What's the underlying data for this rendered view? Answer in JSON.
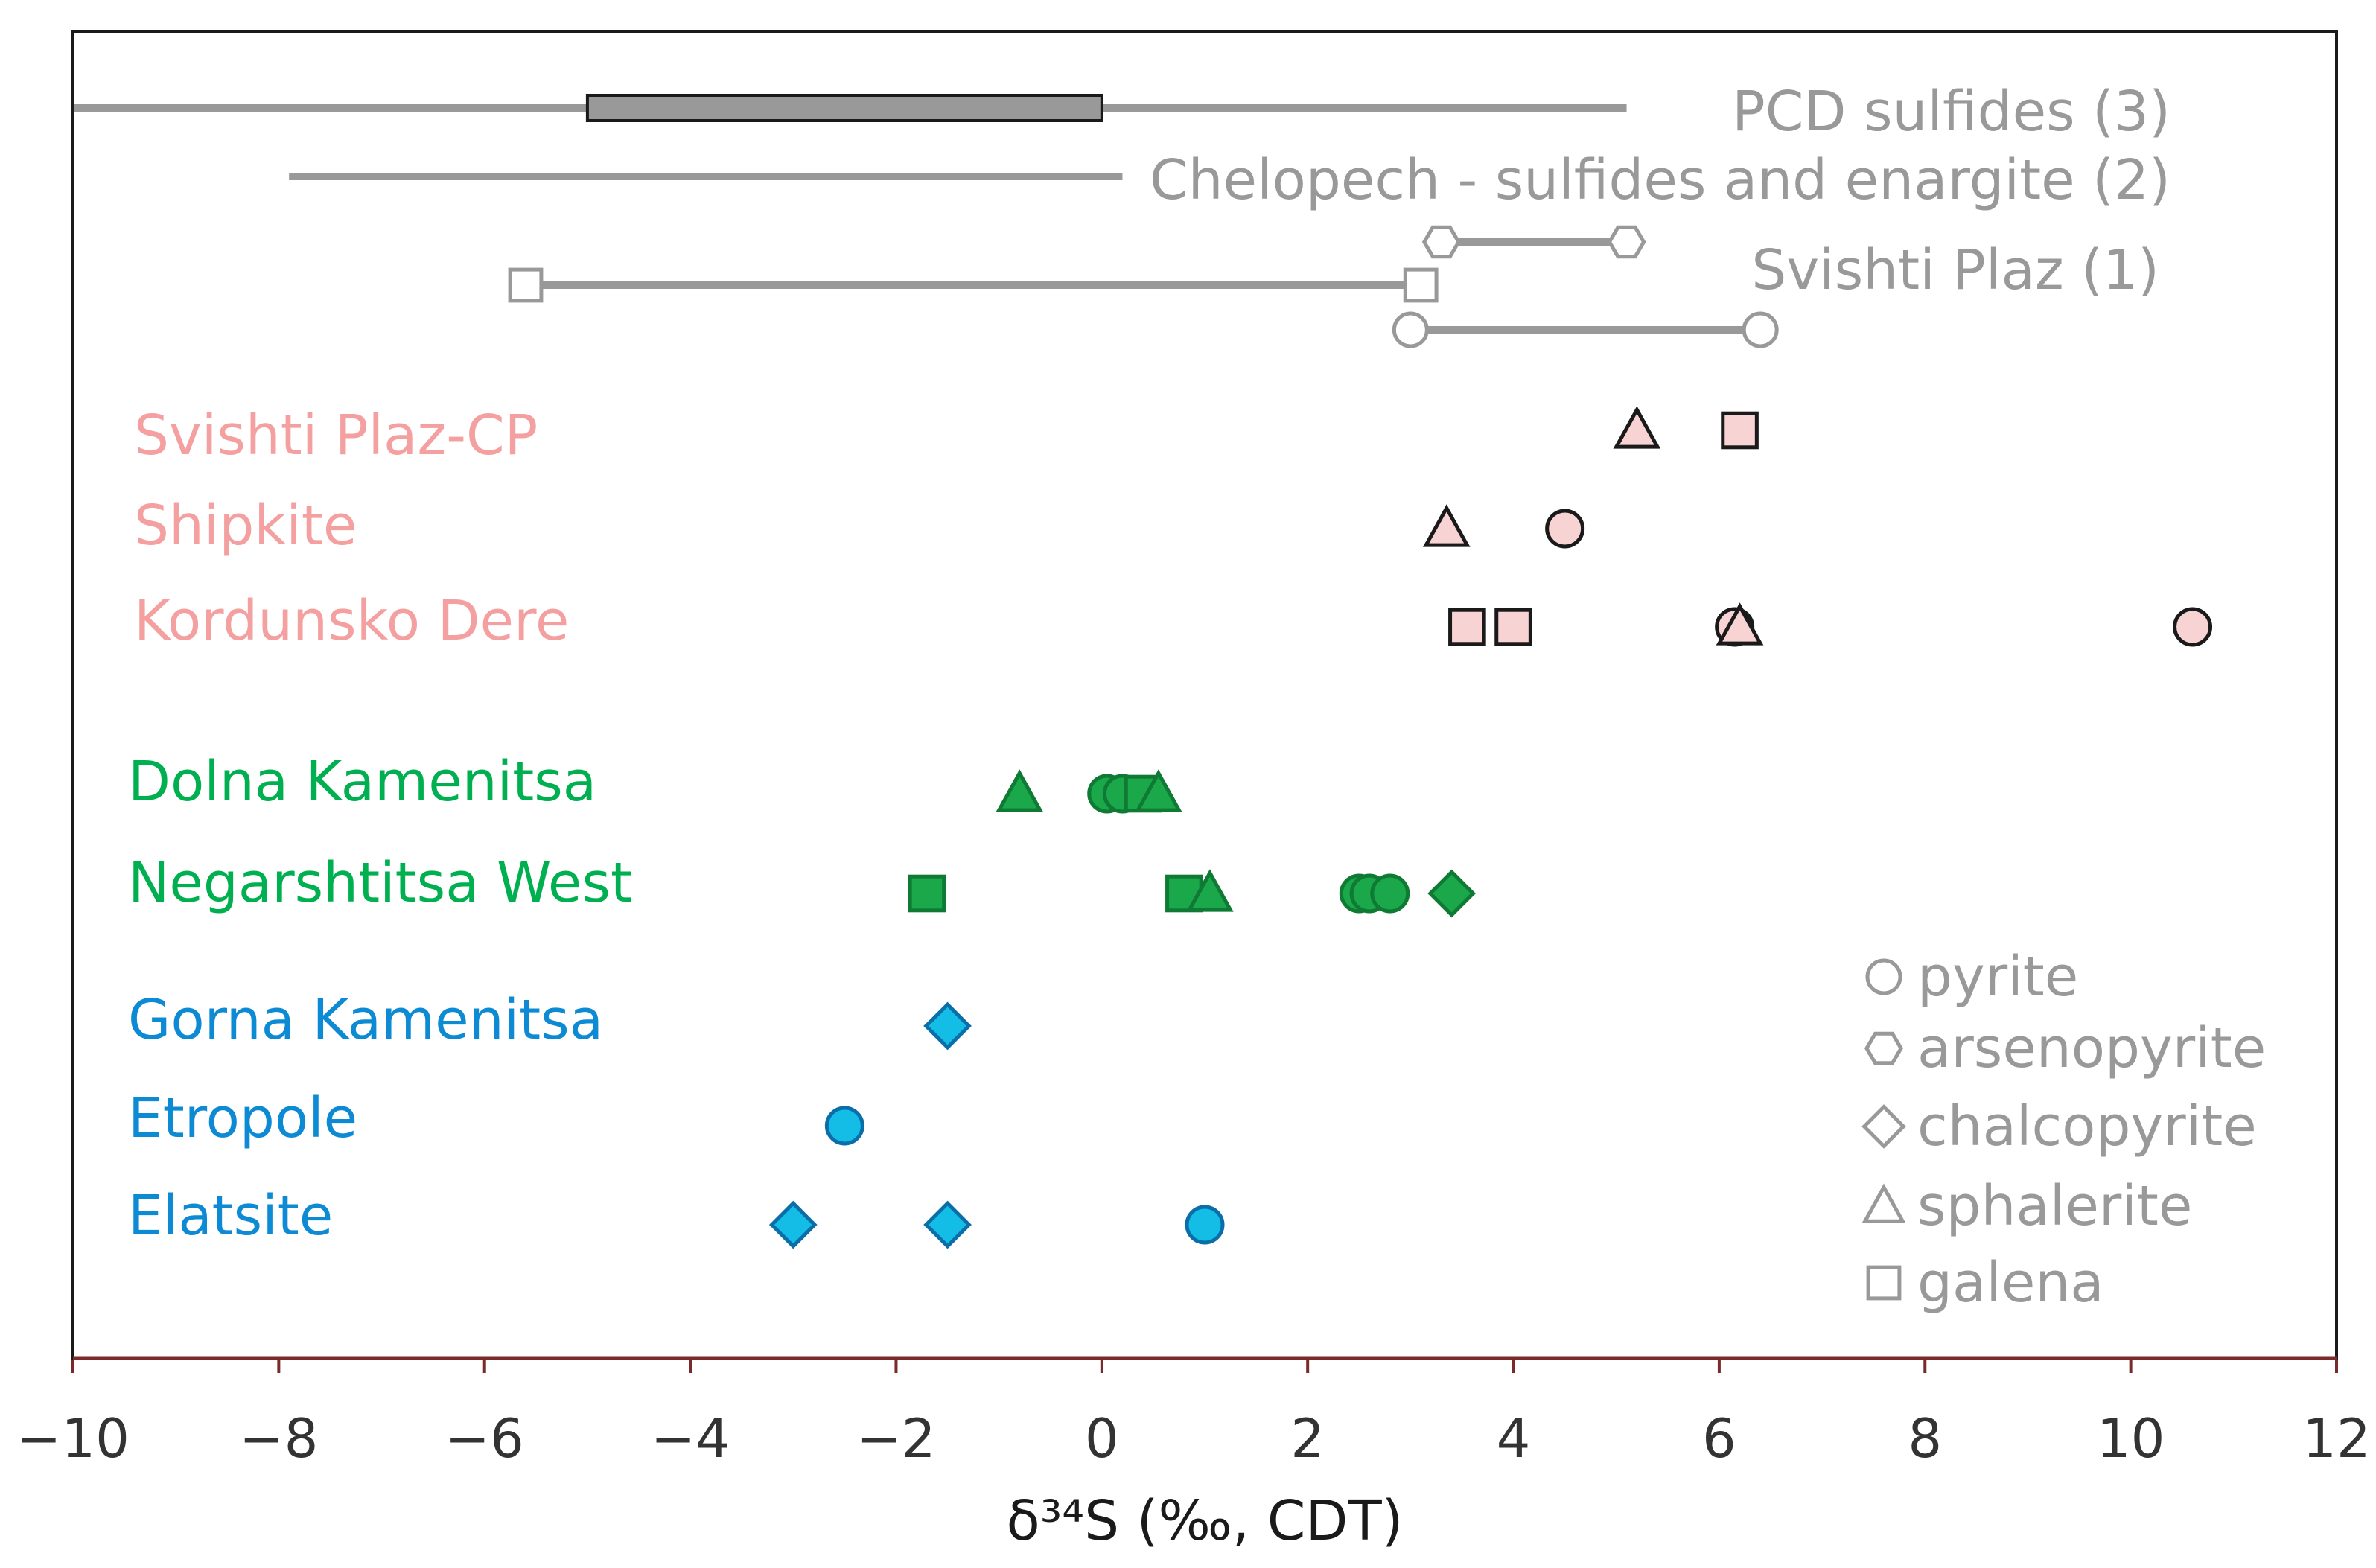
{
  "chart_data": {
    "type": "scatter",
    "title": "",
    "xlabel": "δ³⁴S  (‰, CDT)",
    "ylabel": "",
    "xlim": [
      -10,
      12
    ],
    "xticks": [
      -10,
      -8,
      -6,
      -4,
      -2,
      0,
      2,
      4,
      6,
      8,
      10,
      12
    ],
    "xtick_labels": [
      "−10",
      "−8",
      "−6",
      "−4",
      "−2",
      "0",
      "2",
      "4",
      "6",
      "8",
      "10",
      "12"
    ],
    "grid": false,
    "legend_position": "bottom-right",
    "colors": {
      "reference": "#999999",
      "pink_fill": "#f8d3d3",
      "pink_label": "#f4a0a0",
      "green": "#1aa84a",
      "green_label": "#00b050",
      "blue_fill": "#13bde6",
      "blue_label": "#0d8ad4"
    },
    "legend": [
      {
        "mineral": "pyrite",
        "label": "pyrite"
      },
      {
        "mineral": "arsenopyrite",
        "label": "arsenopyrite"
      },
      {
        "mineral": "chalcopyrite",
        "label": "chalcopyrite"
      },
      {
        "mineral": "sphalerite",
        "label": "sphalerite"
      },
      {
        "mineral": "galena",
        "label": "galena"
      }
    ],
    "reference_ranges": [
      {
        "label": "PCD sulfides (3)",
        "x_min": -10,
        "x_max": 5.1,
        "box_min": -5,
        "box_max": 0,
        "rows": [
          "pcd"
        ]
      },
      {
        "label": "Chelopech - sulfides and enargite (2)",
        "x_min": -7.9,
        "x_max": 0.2,
        "rows": [
          "chelopech"
        ]
      },
      {
        "label": "Svishti Plaz (1)",
        "rows": [
          "svishti_apy",
          "svishti_gn",
          "svishti_py"
        ]
      }
    ],
    "reference_bars": [
      {
        "row": "svishti_apy",
        "mineral": "arsenopyrite",
        "x_min": 3.3,
        "x_max": 5.1
      },
      {
        "row": "svishti_gn",
        "mineral": "galena",
        "x_min": -5.6,
        "x_max": 3.1
      },
      {
        "row": "svishti_py",
        "mineral": "pyrite",
        "x_min": 3.0,
        "x_max": 6.4
      }
    ],
    "localities": [
      {
        "name": "Svishti Plaz-CP",
        "group": "pink",
        "points": [
          {
            "mineral": "sphalerite",
            "x": 5.2
          },
          {
            "mineral": "galena",
            "x": 6.2
          }
        ]
      },
      {
        "name": "Shipkite",
        "group": "pink",
        "points": [
          {
            "mineral": "sphalerite",
            "x": 3.35
          },
          {
            "mineral": "pyrite",
            "x": 4.5
          }
        ]
      },
      {
        "name": "Kordunsko Dere",
        "group": "pink",
        "points": [
          {
            "mineral": "galena",
            "x": 3.55
          },
          {
            "mineral": "galena",
            "x": 4.0
          },
          {
            "mineral": "pyrite",
            "x": 6.15
          },
          {
            "mineral": "sphalerite",
            "x": 6.2
          },
          {
            "mineral": "pyrite",
            "x": 10.6
          }
        ]
      },
      {
        "name": "Dolna Kamenitsa",
        "group": "green",
        "points": [
          {
            "mineral": "sphalerite",
            "x": -0.8
          },
          {
            "mineral": "pyrite",
            "x": 0.05
          },
          {
            "mineral": "pyrite",
            "x": 0.2
          },
          {
            "mineral": "galena",
            "x": 0.4
          },
          {
            "mineral": "sphalerite",
            "x": 0.55
          }
        ]
      },
      {
        "name": "Negarshtitsa West",
        "group": "green",
        "points": [
          {
            "mineral": "galena",
            "x": -1.7
          },
          {
            "mineral": "galena",
            "x": 0.8
          },
          {
            "mineral": "sphalerite",
            "x": 1.05
          },
          {
            "mineral": "pyrite",
            "x": 2.5
          },
          {
            "mineral": "pyrite",
            "x": 2.6
          },
          {
            "mineral": "pyrite",
            "x": 2.8
          },
          {
            "mineral": "chalcopyrite",
            "x": 3.4
          }
        ]
      },
      {
        "name": "Gorna Kamenitsa",
        "group": "blue",
        "points": [
          {
            "mineral": "chalcopyrite",
            "x": -1.5
          }
        ]
      },
      {
        "name": "Etropole",
        "group": "blue",
        "points": [
          {
            "mineral": "pyrite",
            "x": -2.5
          }
        ]
      },
      {
        "name": "Elatsite",
        "group": "blue",
        "points": [
          {
            "mineral": "chalcopyrite",
            "x": -3.0
          },
          {
            "mineral": "chalcopyrite",
            "x": -1.5
          },
          {
            "mineral": "pyrite",
            "x": 1.0
          }
        ]
      }
    ]
  }
}
